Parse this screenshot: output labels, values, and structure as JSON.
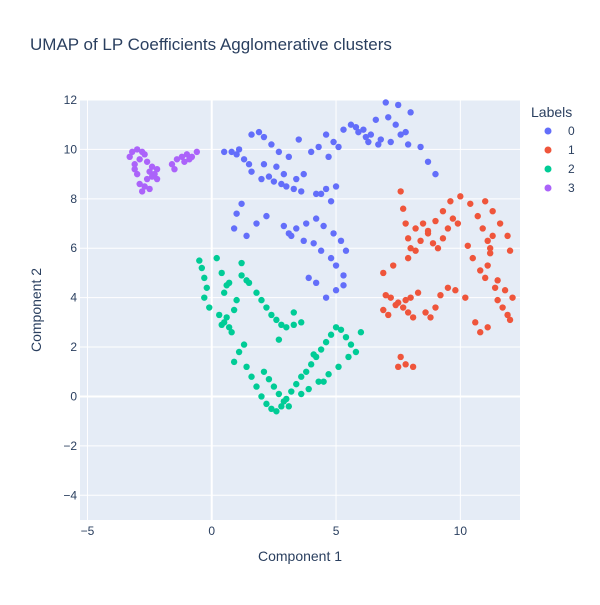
{
  "chart_data": {
    "type": "scatter",
    "title": "UMAP of LP Coefficients Agglomerative clusters",
    "xlabel": "Component 1",
    "ylabel": "Component 2",
    "xlim": [
      -5.3,
      12.4
    ],
    "ylim": [
      -5.0,
      12.0
    ],
    "x_ticks": [
      -5,
      0,
      5,
      10
    ],
    "y_ticks": [
      -4,
      -2,
      0,
      2,
      4,
      6,
      8,
      10,
      12
    ],
    "tick_labels": {
      "x": [
        "−5",
        "0",
        "5",
        "10"
      ],
      "y": [
        "−4",
        "−2",
        "0",
        "2",
        "4",
        "6",
        "8",
        "10",
        "12"
      ]
    },
    "grid": true,
    "plot_background": "#e5ecf6",
    "legend": {
      "title": "Labels",
      "placement": "right"
    },
    "series": [
      {
        "name": "0",
        "color": "#636efa",
        "x": [
          0.5,
          0.8,
          1.0,
          1.3,
          1.5,
          2.0,
          2.5,
          2.8,
          3.0,
          3.3,
          3.6,
          4.2,
          4.6,
          5.0,
          5.3,
          5.8,
          6.2,
          6.6,
          7.0,
          7.5,
          8.0,
          8.4,
          8.7,
          9.0,
          1.6,
          1.9,
          2.1,
          2.4,
          2.7,
          3.1,
          3.5,
          4.0,
          4.3,
          4.7,
          1.2,
          1.0,
          0.9,
          1.4,
          1.8,
          2.2,
          2.9,
          3.2,
          3.7,
          4.1,
          4.4,
          4.8,
          5.0,
          5.3,
          3.1,
          3.4,
          3.8,
          4.2,
          4.5,
          4.9,
          5.2,
          5.4,
          5.3,
          5.0,
          4.6,
          4.2,
          3.9,
          6.1,
          6.4,
          6.8,
          7.2,
          7.6,
          7.9,
          7.1,
          7.4,
          7.8,
          5.6,
          5.9,
          6.3,
          6.7,
          2.6,
          2.9,
          3.4,
          3.7,
          4.4,
          4.8,
          1.1,
          1.6,
          2.3,
          2.1,
          4.6,
          4.9,
          5.1
        ],
        "y": [
          9.9,
          9.9,
          9.8,
          9.6,
          9.4,
          8.8,
          8.7,
          8.6,
          8.5,
          8.4,
          8.3,
          8.2,
          8.4,
          8.5,
          10.8,
          10.9,
          10.5,
          11.2,
          11.9,
          11.8,
          11.5,
          10.1,
          9.5,
          9.0,
          10.6,
          10.7,
          10.5,
          10.2,
          9.9,
          9.7,
          10.4,
          9.9,
          10.1,
          9.7,
          7.8,
          7.4,
          6.8,
          6.5,
          7.0,
          7.3,
          6.9,
          6.5,
          6.3,
          6.2,
          5.9,
          5.6,
          5.3,
          4.9,
          6.6,
          6.8,
          7.0,
          7.2,
          6.9,
          6.6,
          6.3,
          5.9,
          4.5,
          4.3,
          4.0,
          4.6,
          4.8,
          10.8,
          10.6,
          10.4,
          10.3,
          10.6,
          10.2,
          11.3,
          11.0,
          10.7,
          11.0,
          10.7,
          10.3,
          10.2,
          9.3,
          9.0,
          8.8,
          9.0,
          8.2,
          7.9,
          10.0,
          9.1,
          8.9,
          9.4,
          10.6,
          10.3,
          10.1
        ]
      },
      {
        "name": "1",
        "color": "#ef553b",
        "x": [
          7.6,
          7.7,
          7.8,
          7.9,
          8.0,
          8.2,
          8.5,
          8.7,
          8.9,
          9.1,
          9.3,
          9.5,
          9.7,
          9.9,
          10.3,
          10.5,
          10.8,
          11.0,
          11.1,
          11.2,
          11.3,
          11.4,
          11.5,
          11.7,
          11.9,
          12.0,
          12.1,
          11.8,
          11.5,
          11.1,
          10.8,
          10.6,
          7.0,
          7.2,
          7.5,
          7.7,
          7.9,
          8.1,
          6.9,
          7.1,
          7.4,
          7.8,
          8.0,
          8.3,
          8.6,
          8.8,
          9.0,
          9.2,
          9.5,
          9.8,
          10.2,
          7.5,
          7.8,
          8.1,
          7.6,
          6.9,
          7.3,
          7.9,
          8.2,
          8.4,
          8.7,
          9.0,
          9.3,
          9.6,
          10.0,
          10.4,
          10.7,
          10.9,
          11.1,
          11.2,
          11.0,
          11.3,
          11.6,
          11.9,
          12.0
        ],
        "y": [
          8.3,
          7.6,
          7.0,
          6.4,
          6.0,
          6.8,
          7.0,
          6.6,
          6.2,
          6.0,
          6.4,
          6.8,
          7.2,
          7.0,
          6.1,
          5.6,
          5.1,
          4.8,
          5.3,
          6.0,
          6.5,
          4.4,
          3.9,
          3.6,
          3.3,
          3.1,
          4.0,
          4.3,
          4.7,
          2.8,
          2.6,
          3.0,
          4.1,
          4.0,
          3.8,
          3.6,
          3.4,
          3.2,
          3.5,
          3.3,
          3.7,
          3.9,
          4.0,
          4.2,
          3.4,
          3.2,
          3.6,
          4.1,
          4.4,
          4.3,
          4.0,
          1.2,
          1.3,
          1.2,
          1.6,
          5.0,
          5.3,
          5.6,
          5.9,
          6.3,
          6.7,
          7.1,
          7.5,
          7.9,
          8.1,
          7.8,
          7.3,
          6.8,
          6.3,
          5.8,
          7.9,
          7.5,
          7.0,
          6.5,
          5.9
        ]
      },
      {
        "name": "2",
        "color": "#00cc96",
        "x": [
          -0.5,
          -0.4,
          -0.3,
          -0.2,
          -0.3,
          -0.1,
          0.3,
          0.5,
          0.7,
          0.8,
          0.4,
          0.6,
          0.9,
          1.0,
          0.5,
          0.7,
          1.2,
          1.5,
          1.8,
          2.0,
          2.2,
          2.4,
          2.6,
          2.8,
          3.0,
          3.3,
          3.6,
          2.1,
          2.3,
          2.5,
          2.7,
          2.9,
          3.1,
          1.4,
          1.6,
          1.8,
          2.0,
          2.2,
          2.4,
          2.6,
          2.8,
          3.0,
          3.2,
          3.4,
          3.6,
          3.8,
          4.0,
          4.2,
          4.4,
          4.6,
          4.8,
          5.0,
          5.2,
          5.4,
          5.6,
          5.8,
          6.0,
          5.5,
          5.1,
          4.7,
          4.3,
          3.9,
          3.6,
          0.9,
          1.1,
          1.3,
          0.2,
          0.4,
          0.6,
          1.2,
          1.4,
          2.7,
          3.3,
          4.1,
          4.5
        ],
        "y": [
          5.5,
          5.2,
          4.8,
          4.4,
          4.0,
          3.6,
          3.3,
          3.0,
          2.8,
          2.6,
          2.9,
          3.2,
          3.5,
          3.9,
          4.2,
          4.6,
          4.9,
          4.6,
          4.2,
          3.9,
          3.6,
          3.3,
          3.1,
          2.9,
          2.8,
          2.9,
          3.0,
          1.0,
          0.7,
          0.4,
          0.1,
          -0.2,
          -0.4,
          1.2,
          0.8,
          0.4,
          0.0,
          -0.3,
          -0.5,
          -0.6,
          -0.4,
          -0.1,
          0.2,
          0.5,
          0.8,
          1.0,
          1.3,
          1.6,
          1.9,
          2.2,
          2.5,
          2.8,
          2.7,
          2.4,
          2.1,
          1.8,
          2.6,
          1.6,
          1.2,
          0.9,
          0.6,
          0.3,
          0.1,
          1.4,
          1.8,
          2.1,
          5.6,
          5.0,
          4.5,
          5.4,
          4.7,
          2.3,
          3.4,
          1.7,
          0.6
        ]
      },
      {
        "name": "3",
        "color": "#ab63fa",
        "x": [
          -3.3,
          -3.2,
          -3.1,
          -3.0,
          -2.9,
          -2.8,
          -2.7,
          -2.6,
          -2.5,
          -2.4,
          -2.3,
          -2.2,
          -3.1,
          -2.9,
          -2.7,
          -2.6,
          -2.4,
          -2.2,
          -3.0,
          -2.8,
          -2.5,
          -1.6,
          -1.4,
          -1.2,
          -1.0,
          -0.8,
          -0.6,
          -1.5,
          -1.1,
          -0.9
        ],
        "y": [
          9.7,
          9.9,
          9.4,
          9.0,
          8.6,
          8.3,
          8.5,
          8.8,
          9.1,
          9.3,
          9.0,
          8.8,
          9.2,
          9.6,
          9.8,
          9.5,
          8.9,
          9.2,
          10.0,
          9.9,
          8.4,
          9.4,
          9.6,
          9.7,
          9.8,
          9.7,
          9.9,
          9.2,
          9.5,
          9.6
        ]
      }
    ]
  }
}
